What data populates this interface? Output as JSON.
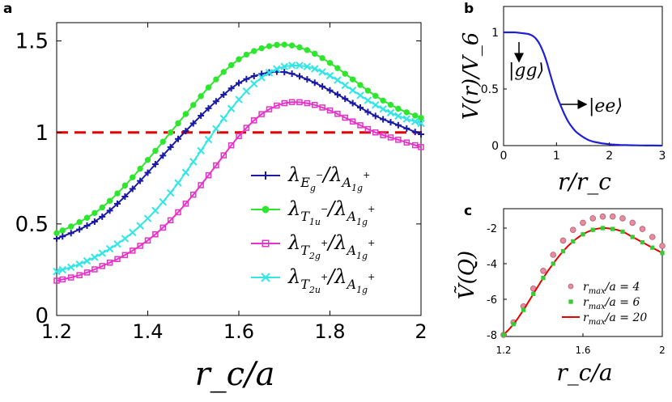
{
  "panel_labels": {
    "a": "a",
    "b": "b",
    "c": "c"
  },
  "colors": {
    "blue": "#1a1aa6",
    "green": "#2ee62e",
    "magenta": "#e633c8",
    "cyan": "#33e6e6",
    "red_dash": "#e60000",
    "pink": "#e68ca0",
    "green_square": "#33cc33",
    "red_line": "#e60000",
    "potential_blue": "#1f1fd6"
  },
  "chart_data": [
    {
      "panel": "a",
      "type": "line",
      "xlabel": "r_c/a",
      "ylabel": "",
      "xlim": [
        1.2,
        2.0
      ],
      "ylim": [
        0,
        1.6
      ],
      "xticks": [
        "1.2",
        "1.4",
        "1.6",
        "1.8",
        "2"
      ],
      "yticks": [
        "0",
        "0.5",
        "1",
        "1.5"
      ],
      "reference_line": {
        "y": 1.0,
        "style": "dashed",
        "color": "red"
      },
      "legend_position": "lower-right",
      "series": [
        {
          "name": "λ_{E_g^-}/λ_{A_{1g}^+}",
          "marker": "plus",
          "x": [
            1.2,
            1.25,
            1.3,
            1.35,
            1.4,
            1.45,
            1.5,
            1.55,
            1.6,
            1.65,
            1.7,
            1.75,
            1.8,
            1.85,
            1.9,
            1.95,
            2.0
          ],
          "y": [
            0.42,
            0.47,
            0.54,
            0.65,
            0.78,
            0.92,
            1.05,
            1.17,
            1.27,
            1.32,
            1.33,
            1.29,
            1.23,
            1.16,
            1.09,
            1.04,
            0.99
          ]
        },
        {
          "name": "λ_{T_{1u}^-}/λ_{A_{1g}^+}",
          "marker": "circle",
          "x": [
            1.2,
            1.25,
            1.3,
            1.35,
            1.4,
            1.45,
            1.5,
            1.55,
            1.6,
            1.65,
            1.7,
            1.75,
            1.8,
            1.85,
            1.9,
            1.95,
            2.0
          ],
          "y": [
            0.45,
            0.51,
            0.59,
            0.71,
            0.85,
            1.0,
            1.15,
            1.29,
            1.4,
            1.46,
            1.48,
            1.45,
            1.38,
            1.29,
            1.2,
            1.13,
            1.08
          ]
        },
        {
          "name": "λ_{T_{2g}^+}/λ_{A_{1g}^+}",
          "marker": "square",
          "x": [
            1.2,
            1.25,
            1.3,
            1.35,
            1.4,
            1.45,
            1.5,
            1.55,
            1.6,
            1.65,
            1.7,
            1.75,
            1.8,
            1.85,
            1.9,
            1.95,
            2.0
          ],
          "y": [
            0.19,
            0.22,
            0.27,
            0.33,
            0.41,
            0.52,
            0.66,
            0.82,
            0.98,
            1.1,
            1.16,
            1.16,
            1.12,
            1.06,
            1.0,
            0.96,
            0.92
          ]
        },
        {
          "name": "λ_{T_{2u}^+}/λ_{A_{1g}^+}",
          "marker": "cross",
          "x": [
            1.2,
            1.25,
            1.3,
            1.35,
            1.4,
            1.45,
            1.5,
            1.55,
            1.6,
            1.65,
            1.7,
            1.75,
            1.8,
            1.85,
            1.9,
            1.95,
            2.0
          ],
          "y": [
            0.24,
            0.28,
            0.34,
            0.42,
            0.53,
            0.67,
            0.84,
            1.02,
            1.18,
            1.3,
            1.36,
            1.36,
            1.31,
            1.23,
            1.15,
            1.09,
            1.05
          ]
        }
      ]
    },
    {
      "panel": "b",
      "type": "line",
      "xlabel": "r/r_c",
      "ylabel": "V(r)/V_6",
      "xlim": [
        0,
        3
      ],
      "ylim": [
        0,
        1
      ],
      "xticks": [
        "0",
        "1",
        "2",
        "3"
      ],
      "yticks": [
        "0",
        "0.5",
        "1"
      ],
      "annotations": [
        "|gg⟩",
        "|ee⟩"
      ],
      "series": [
        {
          "name": "",
          "x": [
            0,
            0.2,
            0.4,
            0.5,
            0.6,
            0.7,
            0.8,
            0.9,
            1.0,
            1.1,
            1.2,
            1.3,
            1.4,
            1.6,
            1.8,
            2.0,
            2.2,
            2.5,
            3.0
          ],
          "y": [
            1.0,
            1.0,
            0.99,
            0.98,
            0.95,
            0.88,
            0.76,
            0.6,
            0.45,
            0.33,
            0.23,
            0.16,
            0.11,
            0.05,
            0.025,
            0.012,
            0.006,
            0.002,
            0.0
          ]
        }
      ]
    },
    {
      "panel": "c",
      "type": "scatter",
      "xlabel": "r_c/a",
      "ylabel": "Ṽ(Q)",
      "xlim": [
        1.2,
        2.0
      ],
      "ylim": [
        -8,
        -1
      ],
      "xticks": [
        "1.2",
        "1.6",
        "2"
      ],
      "yticks": [
        "-8",
        "-6",
        "-4",
        "-2"
      ],
      "legend_position": "lower-right",
      "series": [
        {
          "name": "r_max/a = 4",
          "marker": "circle",
          "x": [
            1.2,
            1.25,
            1.3,
            1.35,
            1.4,
            1.45,
            1.5,
            1.55,
            1.6,
            1.65,
            1.7,
            1.75,
            1.8,
            1.85,
            1.9,
            1.95,
            2.0
          ],
          "y": [
            -8.0,
            -7.3,
            -6.4,
            -5.4,
            -4.4,
            -3.5,
            -2.7,
            -2.1,
            -1.7,
            -1.45,
            -1.35,
            -1.35,
            -1.45,
            -1.7,
            -2.05,
            -2.5,
            -3.0
          ]
        },
        {
          "name": "r_max/a = 6",
          "marker": "square",
          "x": [
            1.2,
            1.25,
            1.3,
            1.35,
            1.4,
            1.45,
            1.5,
            1.55,
            1.6,
            1.65,
            1.7,
            1.75,
            1.8,
            1.85,
            1.9,
            1.95,
            2.0
          ],
          "y": [
            -8.0,
            -7.4,
            -6.6,
            -5.7,
            -4.8,
            -4.0,
            -3.3,
            -2.75,
            -2.35,
            -2.1,
            -2.0,
            -2.05,
            -2.2,
            -2.5,
            -2.8,
            -3.1,
            -3.4
          ]
        },
        {
          "name": "r_max/a = 20",
          "marker": "line",
          "x": [
            1.2,
            1.25,
            1.3,
            1.35,
            1.4,
            1.45,
            1.5,
            1.55,
            1.6,
            1.65,
            1.7,
            1.75,
            1.8,
            1.85,
            1.9,
            1.95,
            2.0
          ],
          "y": [
            -8.0,
            -7.4,
            -6.6,
            -5.7,
            -4.8,
            -4.0,
            -3.3,
            -2.75,
            -2.35,
            -2.1,
            -2.0,
            -2.05,
            -2.2,
            -2.5,
            -2.8,
            -3.1,
            -3.4
          ]
        }
      ]
    }
  ]
}
